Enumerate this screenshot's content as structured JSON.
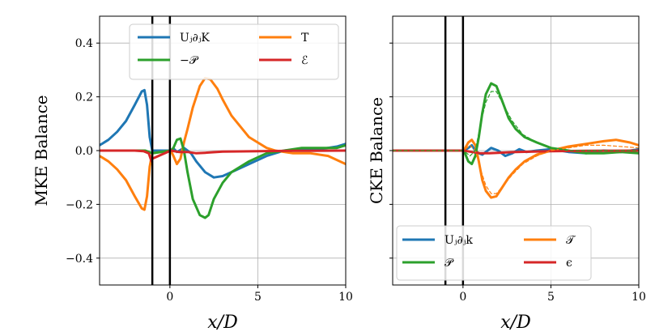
{
  "chart_data": [
    {
      "type": "line",
      "panel": "left",
      "ylabel": "MKE Balance",
      "xlabel": "x/D",
      "xlim": [
        -4,
        10
      ],
      "ylim": [
        -0.5,
        0.5
      ],
      "xticks": [
        "0",
        "5",
        "10"
      ],
      "xtick_values": [
        0,
        5,
        10
      ],
      "yticks": [
        "−0.4",
        "−0.2",
        "0.0",
        "0.2",
        "0.4"
      ],
      "ytick_values": [
        -0.4,
        -0.2,
        0.0,
        0.2,
        0.4
      ],
      "grid": true,
      "legend_position": "top",
      "vlines": [
        -1,
        0
      ],
      "series": [
        {
          "name": "Uⱼ∂ⱼK",
          "color": "#1f77b4",
          "style": "solid",
          "x": [
            -4,
            -3.5,
            -3,
            -2.5,
            -2,
            -1.6,
            -1.45,
            -1.3,
            -1.15,
            -1.0,
            0.05,
            0.2,
            0.4,
            0.6,
            0.8,
            1.0,
            1.2,
            1.5,
            2.0,
            2.5,
            3.0,
            3.5,
            4.5,
            5.5,
            6.5,
            7.5,
            8.5,
            9.5,
            10
          ],
          "values": [
            0.02,
            0.04,
            0.07,
            0.11,
            0.17,
            0.22,
            0.225,
            0.17,
            0.05,
            0.0,
            0.0,
            0.008,
            -0.005,
            0.002,
            0.01,
            0.0,
            -0.01,
            -0.04,
            -0.08,
            -0.1,
            -0.095,
            -0.08,
            -0.05,
            -0.02,
            0.0,
            0.005,
            0.005,
            0.015,
            0.025
          ]
        },
        {
          "name": "T",
          "color": "#ff7f0e",
          "style": "solid",
          "x": [
            -4,
            -3.5,
            -3,
            -2.5,
            -2,
            -1.6,
            -1.45,
            -1.3,
            -1.15,
            -1.0,
            0.05,
            0.2,
            0.4,
            0.6,
            0.8,
            1.0,
            1.3,
            1.7,
            2.0,
            2.3,
            2.7,
            3.0,
            3.5,
            4.5,
            5.5,
            6.0,
            7.0,
            8.0,
            9.0,
            10
          ],
          "values": [
            -0.02,
            -0.04,
            -0.07,
            -0.11,
            -0.17,
            -0.215,
            -0.22,
            -0.17,
            -0.06,
            -0.01,
            0.0,
            -0.02,
            -0.05,
            -0.03,
            0.03,
            0.08,
            0.16,
            0.24,
            0.27,
            0.265,
            0.23,
            0.19,
            0.13,
            0.05,
            0.01,
            0.0,
            -0.01,
            -0.01,
            -0.02,
            -0.05
          ]
        },
        {
          "name": "−𝒫",
          "color": "#2ca02c",
          "style": "solid",
          "x": [
            -4,
            -2,
            -1.4,
            -1.2,
            -1.0,
            0.05,
            0.2,
            0.4,
            0.6,
            0.8,
            1.0,
            1.3,
            1.7,
            2.0,
            2.2,
            2.5,
            3.0,
            3.5,
            4.5,
            5.5,
            6.5,
            7.5,
            8.5,
            9.5,
            10
          ],
          "values": [
            0.0,
            0.0,
            0.0,
            -0.005,
            -0.01,
            0.0,
            0.01,
            0.04,
            0.045,
            0.0,
            -0.08,
            -0.18,
            -0.24,
            -0.25,
            -0.24,
            -0.18,
            -0.12,
            -0.08,
            -0.04,
            -0.01,
            0.0,
            0.01,
            0.01,
            0.01,
            0.02
          ]
        },
        {
          "name": "ℰ",
          "color": "#d62728",
          "style": "solid",
          "x": [
            -4,
            -2,
            -1.5,
            -1.2,
            -1.05,
            -1.0,
            0.05,
            0.5,
            1.0,
            1.5,
            2.0,
            3.0,
            5.0,
            7.0,
            10
          ],
          "values": [
            0.0,
            0.0,
            -0.002,
            -0.01,
            -0.04,
            -0.03,
            0.0,
            -0.005,
            -0.005,
            -0.01,
            -0.008,
            -0.004,
            -0.002,
            -0.001,
            0.0
          ]
        }
      ]
    },
    {
      "type": "line",
      "panel": "right",
      "ylabel": "CKE Balance",
      "xlabel": "x/D",
      "xlim": [
        -4,
        10
      ],
      "ylim": [
        -0.5,
        0.5
      ],
      "xticks": [
        "0",
        "5",
        "10"
      ],
      "xtick_values": [
        0,
        5,
        10
      ],
      "yticks": [],
      "ytick_values": [
        -0.4,
        -0.2,
        0.0,
        0.2,
        0.4
      ],
      "grid": true,
      "legend_position": "bottom",
      "vlines": [
        -1,
        0
      ],
      "series": [
        {
          "name": "Uⱼ∂ⱼk",
          "color": "#1f77b4",
          "style": "solid",
          "x": [
            -4,
            -1.0,
            0.05,
            0.3,
            0.5,
            0.7,
            0.9,
            1.1,
            1.3,
            1.6,
            2.0,
            2.4,
            2.8,
            3.2,
            3.6,
            4.2,
            5.0,
            6.0,
            7.0,
            8.0,
            9.0,
            10
          ],
          "values": [
            0.0,
            0.0,
            0.0,
            0.01,
            0.02,
            0.0,
            -0.01,
            -0.015,
            -0.005,
            0.01,
            0.0,
            -0.02,
            -0.01,
            0.005,
            -0.005,
            0.0,
            0.005,
            -0.005,
            -0.01,
            0.0,
            -0.005,
            0.005
          ]
        },
        {
          "name": "𝒯",
          "color": "#ff7f0e",
          "style": "solid",
          "x": [
            -4,
            -1.0,
            0.05,
            0.3,
            0.5,
            0.7,
            0.9,
            1.1,
            1.3,
            1.6,
            1.9,
            2.2,
            2.6,
            3.0,
            3.5,
            4.2,
            5.0,
            6.0,
            7.0,
            8.0,
            8.7,
            9.5,
            10
          ],
          "values": [
            0.0,
            0.0,
            0.0,
            0.03,
            0.04,
            0.02,
            -0.04,
            -0.11,
            -0.15,
            -0.175,
            -0.17,
            -0.14,
            -0.1,
            -0.07,
            -0.04,
            -0.015,
            0.0,
            0.015,
            0.025,
            0.035,
            0.04,
            0.03,
            0.02
          ]
        },
        {
          "name": "𝒫",
          "color": "#2ca02c",
          "style": "solid",
          "x": [
            -4,
            -1.0,
            0.05,
            0.3,
            0.5,
            0.7,
            0.9,
            1.1,
            1.3,
            1.6,
            1.9,
            2.2,
            2.6,
            3.0,
            3.5,
            4.2,
            5.0,
            6.0,
            7.0,
            8.0,
            9.0,
            10
          ],
          "values": [
            0.0,
            0.0,
            0.0,
            -0.04,
            -0.05,
            -0.02,
            0.05,
            0.14,
            0.21,
            0.25,
            0.24,
            0.19,
            0.12,
            0.08,
            0.05,
            0.03,
            0.01,
            0.0,
            -0.01,
            -0.01,
            -0.005,
            -0.01
          ]
        },
        {
          "name": "ϵ",
          "color": "#d62728",
          "style": "solid",
          "x": [
            -4,
            -1.0,
            0.05,
            0.5,
            1.0,
            1.5,
            2.0,
            3.0,
            5.0,
            7.0,
            10
          ],
          "values": [
            0.0,
            0.0,
            0.0,
            -0.005,
            -0.01,
            -0.01,
            -0.008,
            -0.005,
            -0.002,
            -0.001,
            0.0
          ]
        },
        {
          "name": "",
          "color": "#ff7f0e",
          "style": "dashed",
          "width": 1.2,
          "x": [
            -4,
            -1.0,
            0.05,
            0.4,
            0.7,
            1.0,
            1.3,
            1.6,
            1.9,
            2.3,
            2.8,
            3.4,
            4.2,
            5.0,
            6.0,
            7.0,
            8.0,
            9.0,
            10
          ],
          "values": [
            0.0,
            0.0,
            0.0,
            0.02,
            0.0,
            -0.07,
            -0.13,
            -0.16,
            -0.16,
            -0.13,
            -0.09,
            -0.05,
            -0.02,
            0.0,
            0.01,
            0.02,
            0.02,
            0.015,
            0.01
          ]
        },
        {
          "name": "",
          "color": "#2ca02c",
          "style": "dashed",
          "width": 1.2,
          "x": [
            -4,
            -1.0,
            0.05,
            0.4,
            0.7,
            1.0,
            1.3,
            1.6,
            1.9,
            2.3,
            2.8,
            3.4,
            4.2,
            5.0,
            6.0,
            7.0,
            8.0,
            9.0,
            10
          ],
          "values": [
            0.0,
            0.0,
            0.0,
            -0.02,
            0.0,
            0.1,
            0.18,
            0.22,
            0.22,
            0.17,
            0.11,
            0.06,
            0.03,
            0.01,
            0.0,
            0.0,
            0.0,
            0.0,
            0.0
          ]
        }
      ]
    }
  ]
}
